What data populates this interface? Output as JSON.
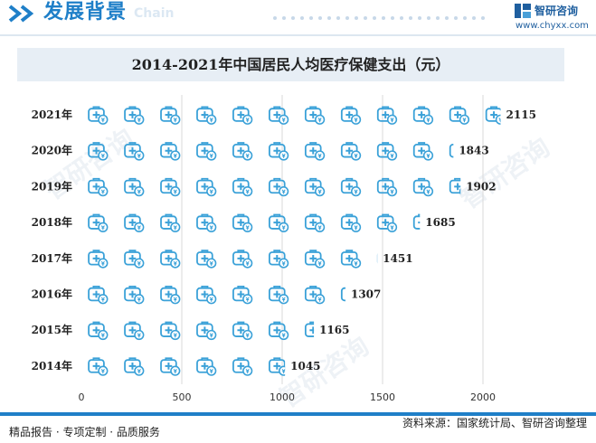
{
  "header": {
    "section_title": "发展背景",
    "section_ghost": "Chain",
    "logo_name": "智研咨询",
    "logo_url": "www.chyxx.com"
  },
  "watermark_text": "智研咨询",
  "chart_data": {
    "type": "bar",
    "title": "2014-2021年中国居民人均医疗保健支出（元）",
    "categories": [
      "2021年",
      "2020年",
      "2019年",
      "2018年",
      "2017年",
      "2016年",
      "2015年",
      "2014年"
    ],
    "values": [
      2115,
      1843,
      1902,
      1685,
      1451,
      1307,
      1165,
      1045
    ],
    "value_labels": [
      "2115",
      "1843",
      "1902",
      "1685",
      "1451",
      "1307",
      "1165",
      "1045"
    ],
    "x_ticks": [
      "0",
      "500",
      "1000",
      "1500",
      "2000"
    ],
    "x_tick_values": [
      0,
      500,
      1000,
      1500,
      2000
    ],
    "xlim": [
      0,
      2180
    ],
    "unit_per_icon": 180,
    "mark": "medical-kit-icon",
    "grid": "vertical",
    "xlabel": "",
    "ylabel": ""
  },
  "colors": {
    "accent": "#1f7fc8",
    "icon": "#3aa1d8",
    "title_band": "#e7eef5",
    "grid": "#d9d9d9"
  },
  "footer": {
    "left": "精品报告 · 专项定制 · 品质服务",
    "right": "资料来源：国家统计局、智研咨询整理"
  }
}
